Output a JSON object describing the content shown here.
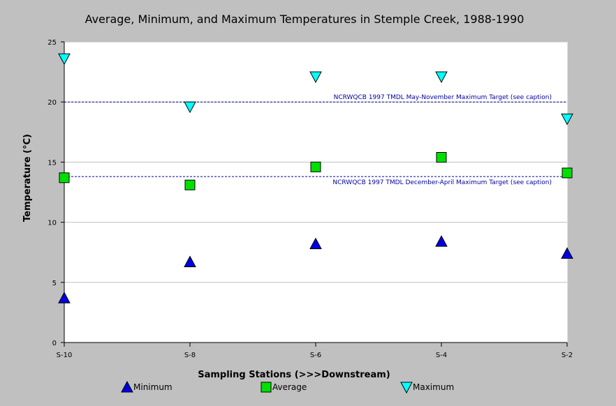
{
  "chart_data": {
    "type": "scatter",
    "title": "Average, Minimum, and Maximum Temperatures in Stemple Creek, 1988-1990",
    "xlabel": "Sampling Stations (>>>Downstream)",
    "ylabel": "Temperature (°C)",
    "ylim": [
      0,
      25
    ],
    "yticks": [
      "0",
      "5",
      "10",
      "15",
      "20",
      "25"
    ],
    "categories": [
      "S-10",
      "S-8",
      "S-6",
      "S-4",
      "S-2"
    ],
    "grid": "horizontal",
    "legend_position": "bottom",
    "series": [
      {
        "name": "Minimum",
        "marker": "triangle-up",
        "color": "#0000e0",
        "values": [
          3.7,
          6.7,
          8.2,
          8.4,
          7.4
        ]
      },
      {
        "name": "Average",
        "marker": "square",
        "color": "#00e000",
        "values": [
          13.7,
          13.1,
          14.6,
          15.4,
          14.1
        ]
      },
      {
        "name": "Maximum",
        "marker": "triangle-down",
        "color": "#00ffff",
        "values": [
          23.6,
          19.6,
          22.1,
          22.1,
          18.6
        ]
      }
    ],
    "reference_lines": [
      {
        "label": "NCRWQCB 1997 TMDL May-November Maximum Target (see caption)",
        "value": 20,
        "label_position": "above"
      },
      {
        "label": "NCRWQCB 1997 TMDL December-April Maximum Target (see caption)",
        "value": 13.8,
        "label_position": "below"
      }
    ]
  }
}
